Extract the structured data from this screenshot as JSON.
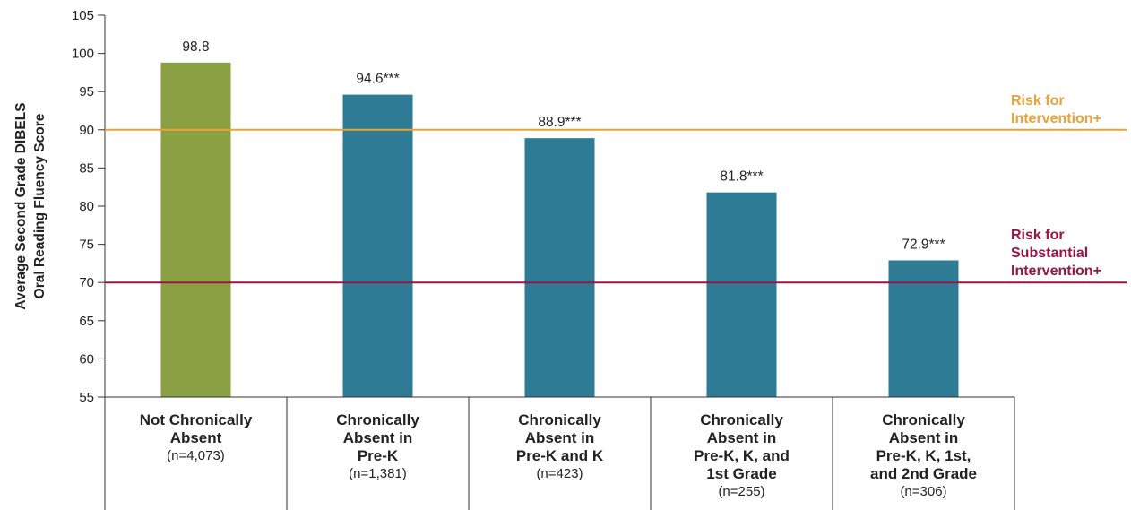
{
  "chart_data": {
    "type": "bar",
    "ylabel_lines": [
      "Average Second Grade DIBELS",
      "Oral Reading Fluency Score"
    ],
    "ylim": [
      55,
      105
    ],
    "yticks": [
      55,
      60,
      65,
      70,
      75,
      80,
      85,
      90,
      95,
      100,
      105
    ],
    "grid": false,
    "categories": [
      {
        "lines": [
          "Not Chronically",
          "Absent"
        ],
        "n": "(n=4,073)"
      },
      {
        "lines": [
          "Chronically",
          "Absent in",
          "Pre-K"
        ],
        "n": "(n=1,381)"
      },
      {
        "lines": [
          "Chronically",
          "Absent in",
          "Pre-K and K"
        ],
        "n": "(n=423)"
      },
      {
        "lines": [
          "Chronically",
          "Absent in",
          "Pre-K, K, and",
          "1st Grade"
        ],
        "n": "(n=255)"
      },
      {
        "lines": [
          "Chronically",
          "Absent in",
          "Pre-K, K, 1st,",
          "and 2nd Grade"
        ],
        "n": "(n=306)"
      }
    ],
    "values": [
      98.8,
      94.6,
      88.9,
      81.8,
      72.9
    ],
    "value_labels": [
      "98.8",
      "94.6***",
      "88.9***",
      "81.8***",
      "72.9***"
    ],
    "bar_colors": [
      "#8aa043",
      "#2e7b96",
      "#2e7b96",
      "#2e7b96",
      "#2e7b96"
    ],
    "reference_lines": [
      {
        "value": 90,
        "label_lines": [
          "Risk for",
          "Intervention+"
        ],
        "color": "#e8a23a"
      },
      {
        "value": 70,
        "label_lines": [
          "Risk for",
          "Substantial",
          "Intervention+"
        ],
        "color": "#9b1446"
      }
    ]
  }
}
